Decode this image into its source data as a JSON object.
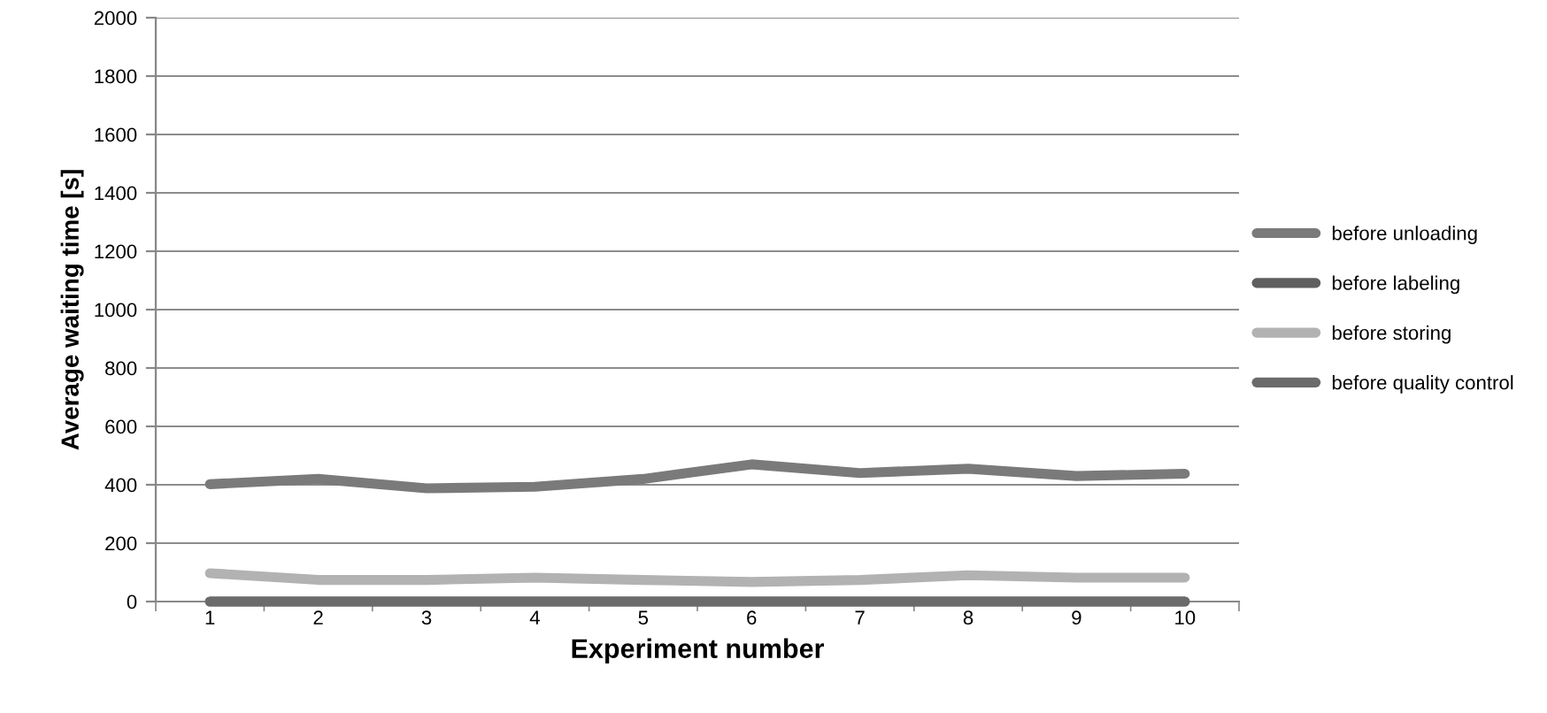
{
  "chart_data": {
    "type": "line",
    "xlabel": "Experiment number",
    "ylabel": "Average waiting time [s]",
    "categories": [
      "1",
      "2",
      "3",
      "4",
      "5",
      "6",
      "7",
      "8",
      "9",
      "10"
    ],
    "series": [
      {
        "name": "before unloading",
        "color": "#7a7a7a",
        "values": [
          402,
          420,
          388,
          393,
          420,
          470,
          440,
          455,
          430,
          438
        ]
      },
      {
        "name": "before labeling",
        "color": "#5f5f5f",
        "values": [
          0,
          0,
          0,
          0,
          0,
          0,
          0,
          0,
          0,
          0
        ]
      },
      {
        "name": "before storing",
        "color": "#b2b2b2",
        "values": [
          97,
          74,
          74,
          82,
          74,
          67,
          74,
          90,
          82,
          82
        ]
      },
      {
        "name": "before quality control",
        "color": "#6b6b6b",
        "values": [
          0,
          0,
          0,
          0,
          0,
          0,
          0,
          0,
          0,
          0
        ]
      }
    ],
    "ylim": [
      0,
      2000
    ],
    "yticks": [
      0,
      200,
      400,
      600,
      800,
      1000,
      1200,
      1400,
      1600,
      1800,
      2000
    ],
    "grid": "y",
    "legend": "right",
    "marker": "none",
    "line_style": "solid"
  }
}
